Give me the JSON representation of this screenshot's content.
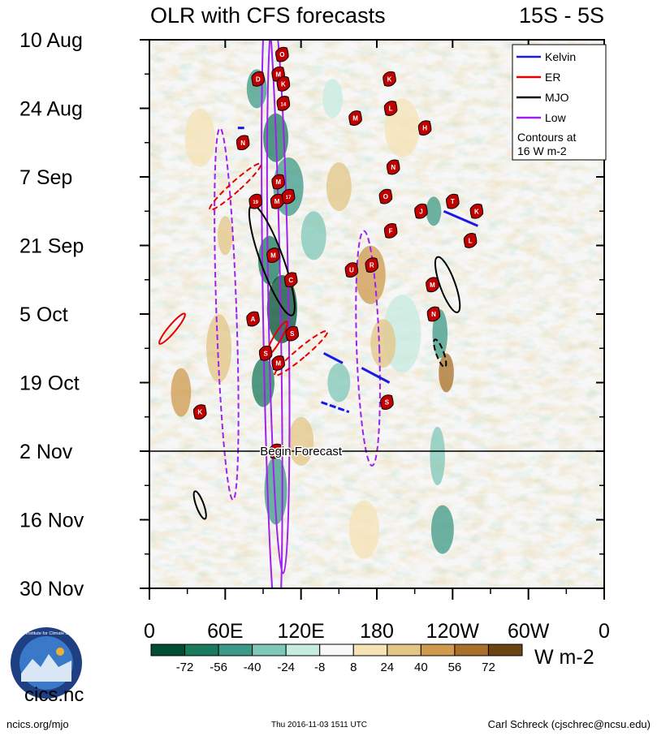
{
  "chart_data": {
    "type": "heatmap",
    "title": "OLR with CFS forecasts",
    "region_label": "15S - 5S",
    "y_tick_labels": [
      "10 Aug",
      "24 Aug",
      "7 Sep",
      "21 Sep",
      "5 Oct",
      "19 Oct",
      "2 Nov",
      "16 Nov",
      "30 Nov"
    ],
    "y_range_days": [
      0,
      112
    ],
    "x_tick_labels": [
      "0",
      "60E",
      "120E",
      "180",
      "120W",
      "60W",
      "0"
    ],
    "x_range_deg": [
      0,
      360
    ],
    "forecast_marker": {
      "label": "Begin Forecast",
      "day": 84
    },
    "legend": {
      "entries": [
        {
          "name": "Kelvin",
          "color": "#1a1ae6"
        },
        {
          "name": "ER",
          "color": "#e60000"
        },
        {
          "name": "MJO",
          "color": "#000000"
        },
        {
          "name": "Low",
          "color": "#a020f0"
        }
      ],
      "note_line1": "Contours at",
      "note_line2": "16 W m-2"
    },
    "colorbar": {
      "labels": [
        "-72",
        "-56",
        "-40",
        "-24",
        "-8",
        "8",
        "24",
        "40",
        "56",
        "72"
      ],
      "units": "W m-2",
      "colors": [
        "#004d33",
        "#1a7a5e",
        "#3d9987",
        "#7fc7b8",
        "#c6ebe1",
        "#f8f8f8",
        "#f5e3b5",
        "#e3c586",
        "#cf9a4e",
        "#a8702a",
        "#6b4413"
      ]
    },
    "storms": [
      {
        "label": "O",
        "lon": 105,
        "day": 3
      },
      {
        "label": "D",
        "lon": 86,
        "day": 8
      },
      {
        "label": "M",
        "lon": 102,
        "day": 7
      },
      {
        "label": "K",
        "lon": 106,
        "day": 9
      },
      {
        "label": "K",
        "lon": 190,
        "day": 8
      },
      {
        "label": "14",
        "lon": 106,
        "day": 13
      },
      {
        "label": "L",
        "lon": 191,
        "day": 14
      },
      {
        "label": "M",
        "lon": 163,
        "day": 16
      },
      {
        "label": "H",
        "lon": 218,
        "day": 18
      },
      {
        "label": "N",
        "lon": 74,
        "day": 21
      },
      {
        "label": "N",
        "lon": 193,
        "day": 26
      },
      {
        "label": "M",
        "lon": 102,
        "day": 29
      },
      {
        "label": "19",
        "lon": 84,
        "day": 33
      },
      {
        "label": "M",
        "lon": 101,
        "day": 33
      },
      {
        "label": "17",
        "lon": 110,
        "day": 32
      },
      {
        "label": "O",
        "lon": 187,
        "day": 32
      },
      {
        "label": "T",
        "lon": 240,
        "day": 33
      },
      {
        "label": "J",
        "lon": 215,
        "day": 35
      },
      {
        "label": "K",
        "lon": 259,
        "day": 35
      },
      {
        "label": "F",
        "lon": 191,
        "day": 39
      },
      {
        "label": "L",
        "lon": 254,
        "day": 41
      },
      {
        "label": "M",
        "lon": 98,
        "day": 44
      },
      {
        "label": "U",
        "lon": 160,
        "day": 47
      },
      {
        "label": "R",
        "lon": 176,
        "day": 46
      },
      {
        "label": "C",
        "lon": 112,
        "day": 49
      },
      {
        "label": "M",
        "lon": 224,
        "day": 50
      },
      {
        "label": "N",
        "lon": 225,
        "day": 56
      },
      {
        "label": "A",
        "lon": 82,
        "day": 57
      },
      {
        "label": "S",
        "lon": 113,
        "day": 60
      },
      {
        "label": "S",
        "lon": 92,
        "day": 64
      },
      {
        "label": "M",
        "lon": 102,
        "day": 66
      },
      {
        "label": "S",
        "lon": 188,
        "day": 74
      },
      {
        "label": "K",
        "lon": 40,
        "day": 76
      },
      {
        "label": "D",
        "lon": 100,
        "day": 84
      }
    ]
  },
  "footer": {
    "left": "ncics.org/mjo",
    "center": "Thu 2016-11-03 1511 UTC",
    "right": "Carl Schreck (cjschrec@ncsu.edu)",
    "logo_text": "cics.nc",
    "logo_ring_text": "Cooperative Institute for Climate and Satellites"
  }
}
